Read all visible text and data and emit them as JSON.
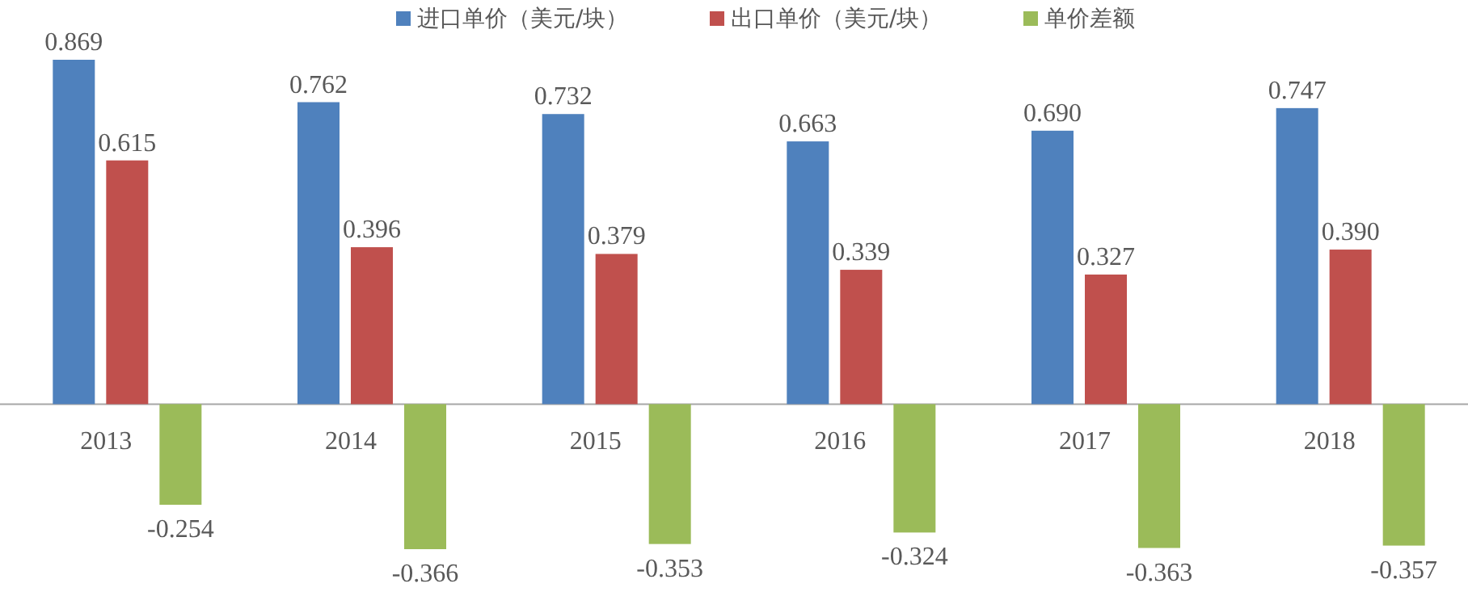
{
  "chart_data": {
    "type": "bar",
    "categories": [
      "2013",
      "2014",
      "2015",
      "2016",
      "2017",
      "2018"
    ],
    "series": [
      {
        "name": "进口单价（美元/块）",
        "color": "#4f81bd",
        "values": [
          0.869,
          0.762,
          0.732,
          0.663,
          0.69,
          0.747
        ],
        "value_labels": [
          "0.869",
          "0.762",
          "0.732",
          "0.663",
          "0.690",
          "0.747"
        ]
      },
      {
        "name": "出口单价（美元/块）",
        "color": "#c0504d",
        "values": [
          0.615,
          0.396,
          0.379,
          0.339,
          0.327,
          0.39
        ],
        "value_labels": [
          "0.615",
          "0.396",
          "0.379",
          "0.339",
          "0.327",
          "0.390"
        ]
      },
      {
        "name": "单价差额",
        "color": "#9bbb59",
        "values": [
          -0.254,
          -0.366,
          -0.353,
          -0.324,
          -0.363,
          -0.357
        ],
        "value_labels": [
          "-0.254",
          "-0.366",
          "-0.353",
          "-0.324",
          "-0.363",
          "-0.357"
        ]
      }
    ],
    "legend": "top"
  }
}
